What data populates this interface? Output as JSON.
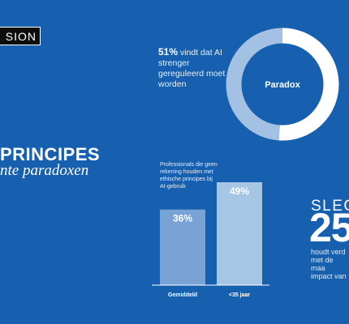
{
  "header": {
    "tag": "SION"
  },
  "headline": {
    "title": "PRINCIPES",
    "subtitle": "nte paradoxen"
  },
  "donut": {
    "center_label": "Paradox",
    "stat_pct": "51%",
    "stat_text": "vindt dat AI strenger gereguleerd moet worden",
    "colors": {
      "ring": "#a2c1e3",
      "highlight": "#ffffff"
    }
  },
  "bars": {
    "note": "Professionals die geen rekening houden met ethische principes bij AI-gebruik"
  },
  "callout": {
    "word": "SLEC",
    "value": "25",
    "text": "houdt verd\nmet de maa\nimpact van"
  },
  "chart_data": [
    {
      "type": "pie",
      "title": "",
      "slices": [
        {
          "label": "",
          "value": 51
        },
        {
          "label": "",
          "value": 49
        }
      ],
      "center_label": "Paradox"
    },
    {
      "type": "bar",
      "title": "",
      "categories": [
        "Gemiddeld",
        "<35 jaar"
      ],
      "values": [
        36,
        49
      ],
      "data_labels": [
        "36%",
        "49%"
      ],
      "ylim": [
        0,
        49
      ],
      "colors": [
        "#7aa3d5",
        "#a7c5e5"
      ],
      "grid": false
    }
  ]
}
